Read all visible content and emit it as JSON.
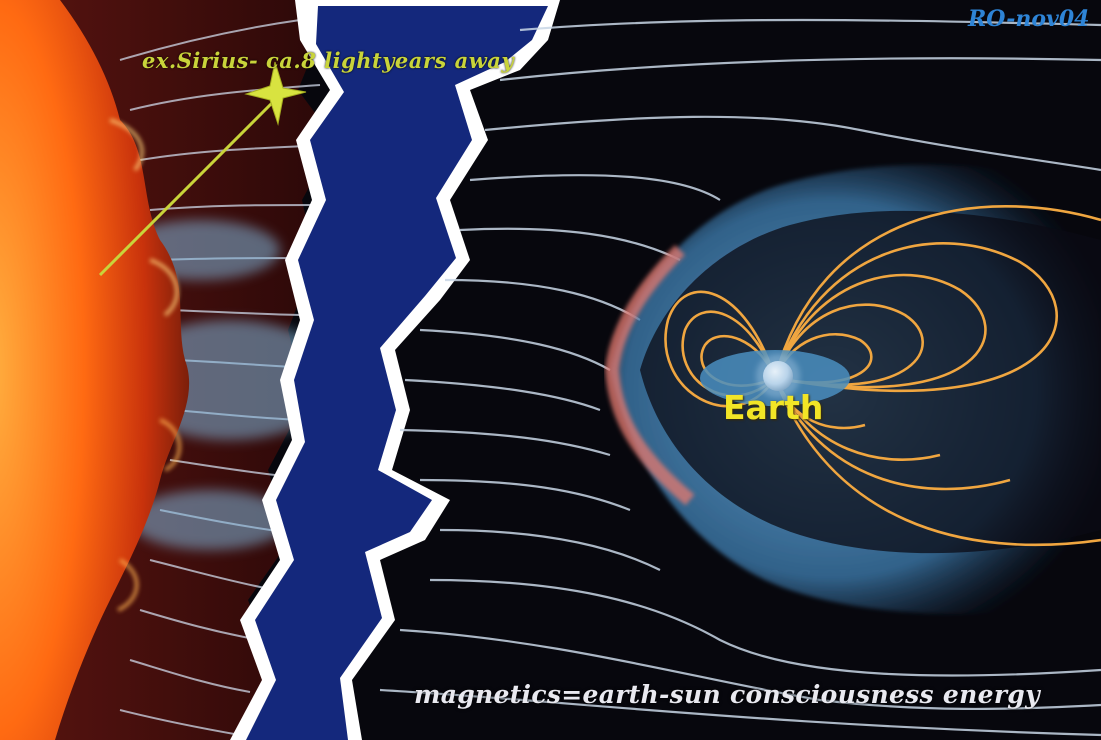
{
  "labels": {
    "sirius": "ex.Sirius- ca.8 lightyears away",
    "credit": "RO-nov04",
    "earth": "Earth",
    "caption": "magnetics=earth-sun consciousness energy"
  },
  "colors": {
    "sirius_text": "#c9d43a",
    "credit_text": "#2e84d6",
    "earth_text": "#f2e526",
    "caption_text": "#e9e9f0",
    "space": "#07070d",
    "solar_dark_red": "#3a0c0c",
    "sun": "#ff6a12",
    "rift": "#14287c",
    "field_lines": "#c8d6e6",
    "plasma": "#4a8ec0",
    "bow_shock": "#e67a70",
    "inner_field_lines": "#f0a640"
  },
  "icons": {
    "star": "four-point-star-icon",
    "earth": "planet-earth-icon"
  }
}
